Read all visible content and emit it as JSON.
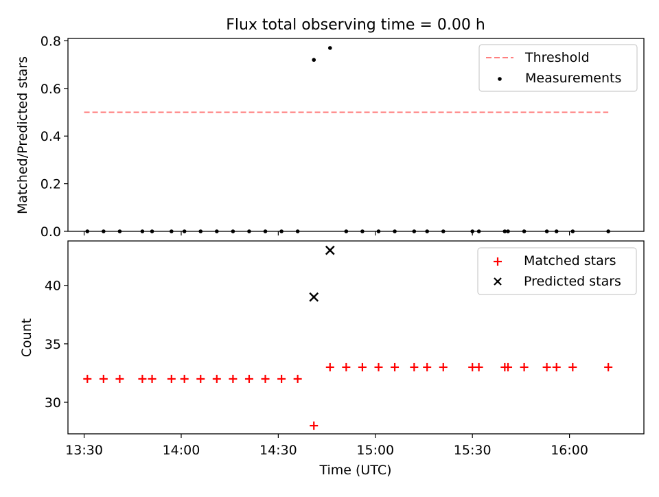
{
  "chart_data": [
    {
      "type": "scatter",
      "title": "Flux total observing time = 0.00 h",
      "ylabel": "Matched/Predicted stars",
      "xlim": [
        "13:25",
        "16:23"
      ],
      "ylim": [
        0,
        0.81
      ],
      "yticks": [
        0.0,
        0.2,
        0.4,
        0.6,
        0.8
      ],
      "ytick_labels": [
        "0.0",
        "0.2",
        "0.4",
        "0.6",
        "0.8"
      ],
      "legend": "top-right",
      "legend_entries": [
        "Threshold",
        "Measurements"
      ],
      "threshold": {
        "name": "Threshold",
        "y": 0.5,
        "x_start": "13:30",
        "x_end": "16:12",
        "color": "#ff7f7f",
        "style": "dashed"
      },
      "measurements": {
        "name": "Measurements",
        "color": "#000000",
        "points": [
          {
            "x": "13:31",
            "y": 0
          },
          {
            "x": "13:36",
            "y": 0
          },
          {
            "x": "13:41",
            "y": 0
          },
          {
            "x": "13:48",
            "y": 0
          },
          {
            "x": "13:51",
            "y": 0
          },
          {
            "x": "13:57",
            "y": 0
          },
          {
            "x": "14:01",
            "y": 0
          },
          {
            "x": "14:06",
            "y": 0
          },
          {
            "x": "14:11",
            "y": 0
          },
          {
            "x": "14:16",
            "y": 0
          },
          {
            "x": "14:21",
            "y": 0
          },
          {
            "x": "14:26",
            "y": 0
          },
          {
            "x": "14:31",
            "y": 0
          },
          {
            "x": "14:36",
            "y": 0
          },
          {
            "x": "14:41",
            "y": 0.72
          },
          {
            "x": "14:46",
            "y": 0.77
          },
          {
            "x": "14:51",
            "y": 0
          },
          {
            "x": "14:56",
            "y": 0
          },
          {
            "x": "15:01",
            "y": 0
          },
          {
            "x": "15:06",
            "y": 0
          },
          {
            "x": "15:12",
            "y": 0
          },
          {
            "x": "15:16",
            "y": 0
          },
          {
            "x": "15:21",
            "y": 0
          },
          {
            "x": "15:30",
            "y": 0
          },
          {
            "x": "15:32",
            "y": 0
          },
          {
            "x": "15:40",
            "y": 0
          },
          {
            "x": "15:41",
            "y": 0
          },
          {
            "x": "15:46",
            "y": 0
          },
          {
            "x": "15:53",
            "y": 0
          },
          {
            "x": "15:56",
            "y": 0
          },
          {
            "x": "16:01",
            "y": 0
          },
          {
            "x": "16:12",
            "y": 0
          }
        ]
      }
    },
    {
      "type": "scatter",
      "xlabel": "Time (UTC)",
      "ylabel": "Count",
      "xlim": [
        "13:25",
        "16:23"
      ],
      "ylim": [
        27.3,
        43.8
      ],
      "xticks": [
        "13:30",
        "14:00",
        "14:30",
        "15:00",
        "15:30",
        "16:00"
      ],
      "yticks": [
        30,
        35,
        40
      ],
      "ytick_labels": [
        "30",
        "35",
        "40"
      ],
      "legend": "top-right",
      "legend_entries": [
        "Matched stars",
        "Predicted stars"
      ],
      "series": [
        {
          "name": "Matched stars",
          "marker": "+",
          "color": "#ff0000",
          "points": [
            {
              "x": "13:31",
              "y": 32
            },
            {
              "x": "13:36",
              "y": 32
            },
            {
              "x": "13:41",
              "y": 32
            },
            {
              "x": "13:48",
              "y": 32
            },
            {
              "x": "13:51",
              "y": 32
            },
            {
              "x": "13:57",
              "y": 32
            },
            {
              "x": "14:01",
              "y": 32
            },
            {
              "x": "14:06",
              "y": 32
            },
            {
              "x": "14:11",
              "y": 32
            },
            {
              "x": "14:16",
              "y": 32
            },
            {
              "x": "14:21",
              "y": 32
            },
            {
              "x": "14:26",
              "y": 32
            },
            {
              "x": "14:31",
              "y": 32
            },
            {
              "x": "14:36",
              "y": 32
            },
            {
              "x": "14:41",
              "y": 28
            },
            {
              "x": "14:46",
              "y": 33
            },
            {
              "x": "14:51",
              "y": 33
            },
            {
              "x": "14:56",
              "y": 33
            },
            {
              "x": "15:01",
              "y": 33
            },
            {
              "x": "15:06",
              "y": 33
            },
            {
              "x": "15:12",
              "y": 33
            },
            {
              "x": "15:16",
              "y": 33
            },
            {
              "x": "15:21",
              "y": 33
            },
            {
              "x": "15:30",
              "y": 33
            },
            {
              "x": "15:32",
              "y": 33
            },
            {
              "x": "15:40",
              "y": 33
            },
            {
              "x": "15:41",
              "y": 33
            },
            {
              "x": "15:46",
              "y": 33
            },
            {
              "x": "15:53",
              "y": 33
            },
            {
              "x": "15:56",
              "y": 33
            },
            {
              "x": "16:01",
              "y": 33
            },
            {
              "x": "16:12",
              "y": 33
            }
          ]
        },
        {
          "name": "Predicted stars",
          "marker": "x",
          "color": "#000000",
          "points": [
            {
              "x": "14:41",
              "y": 39
            },
            {
              "x": "14:46",
              "y": 43
            }
          ]
        }
      ]
    }
  ]
}
